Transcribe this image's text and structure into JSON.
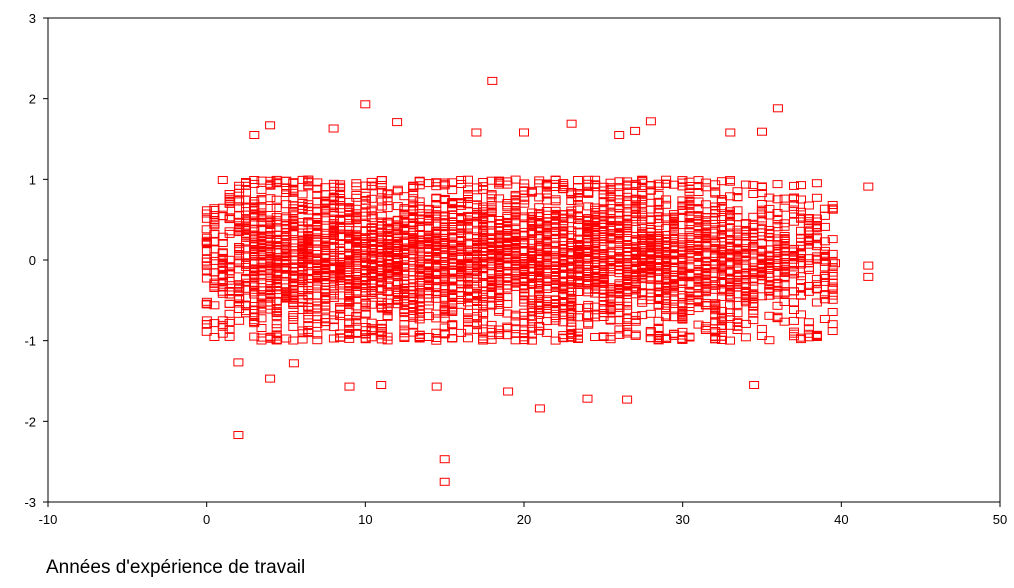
{
  "chart_data": {
    "type": "scatter",
    "title": "",
    "xlabel": "Années d'expérience de travail",
    "ylabel": "",
    "xlim": [
      -10,
      50
    ],
    "ylim": [
      -3,
      3
    ],
    "xticks": [
      "-10",
      "0",
      "10",
      "20",
      "30",
      "40",
      "50"
    ],
    "yticks": [
      "-3",
      "-2",
      "-1",
      "0",
      "1",
      "2",
      "3"
    ],
    "grid": false,
    "legend": "none",
    "marker": "hollow-square",
    "marker_color": "#ff0000",
    "band": {
      "x_min": 0,
      "x_max": 39,
      "y_center": 0,
      "y_spread": 0.5,
      "core_range": [
        -1,
        1
      ]
    },
    "outliers": [
      {
        "x": 2,
        "y": -2.17
      },
      {
        "x": 15,
        "y": -2.47
      },
      {
        "x": 15,
        "y": -2.75
      },
      {
        "x": 18,
        "y": 2.22
      },
      {
        "x": 10,
        "y": 1.93
      },
      {
        "x": 36,
        "y": 1.88
      },
      {
        "x": 28,
        "y": 1.72
      },
      {
        "x": 12,
        "y": 1.71
      },
      {
        "x": 4,
        "y": 1.67
      },
      {
        "x": 23,
        "y": 1.69
      },
      {
        "x": 8,
        "y": 1.63
      },
      {
        "x": 3,
        "y": 1.55
      },
      {
        "x": 17,
        "y": 1.58
      },
      {
        "x": 20,
        "y": 1.58
      },
      {
        "x": 26,
        "y": 1.55
      },
      {
        "x": 27,
        "y": 1.6
      },
      {
        "x": 33,
        "y": 1.58
      },
      {
        "x": 35,
        "y": 1.59
      },
      {
        "x": 21,
        "y": -1.84
      },
      {
        "x": 26.5,
        "y": -1.73
      },
      {
        "x": 24,
        "y": -1.72
      },
      {
        "x": 19,
        "y": -1.63
      },
      {
        "x": 9,
        "y": -1.57
      },
      {
        "x": 11,
        "y": -1.55
      },
      {
        "x": 14.5,
        "y": -1.57
      },
      {
        "x": 34.5,
        "y": -1.55
      },
      {
        "x": 4,
        "y": -1.47
      },
      {
        "x": 2,
        "y": -1.27
      },
      {
        "x": 5.5,
        "y": -1.28
      },
      {
        "x": 41.7,
        "y": 0.91
      },
      {
        "x": 41.7,
        "y": -0.07
      },
      {
        "x": 41.7,
        "y": -0.21
      },
      {
        "x": 39.6,
        "y": -0.04
      },
      {
        "x": 0,
        "y": -0.89
      },
      {
        "x": 0,
        "y": 0.38
      },
      {
        "x": 0,
        "y": -0.55
      }
    ]
  }
}
